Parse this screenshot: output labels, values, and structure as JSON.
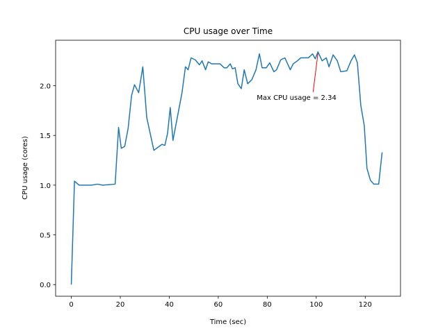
{
  "chart_data": {
    "type": "line",
    "title": "CPU usage over Time",
    "xlabel": "Time (sec)",
    "ylabel": "CPU usage (cores)",
    "x": [
      0,
      1.3,
      3.2,
      4.9,
      6.6,
      8.3,
      10.6,
      12.8,
      17.9,
      19.3,
      20.4,
      21.8,
      23.2,
      24.6,
      25.8,
      27.5,
      29.2,
      30.8,
      33.7,
      37.0,
      38.2,
      39.3,
      40.4,
      41.5,
      43.2,
      45.2,
      46.6,
      47.7,
      48.9,
      50.6,
      52.3,
      53.4,
      54.8,
      55.9,
      57.3,
      60.7,
      62.4,
      63.5,
      64.9,
      65.8,
      66.9,
      68.0,
      69.4,
      70.6,
      72.0,
      73.7,
      75.4,
      76.8,
      77.9,
      79.6,
      81.0,
      82.7,
      83.8,
      85.5,
      87.2,
      89.4,
      90.6,
      92.3,
      93.7,
      96.8,
      98.5,
      99.6,
      100.7,
      102.4,
      104.1,
      105.2,
      106.9,
      108.6,
      110.0,
      112.5,
      114.2,
      115.6,
      116.8,
      118.2,
      119.6,
      120.7,
      122.1,
      123.5,
      125.5,
      126.9
    ],
    "series": [
      {
        "name": "CPU usage",
        "color": "#1f77b4",
        "values": [
          0,
          1.04,
          1.0,
          1.0,
          1.0,
          1.0,
          1.01,
          1.0,
          1.01,
          1.58,
          1.37,
          1.39,
          1.57,
          1.9,
          2.01,
          1.93,
          2.19,
          1.68,
          1.35,
          1.41,
          1.4,
          1.52,
          1.78,
          1.45,
          1.67,
          1.93,
          2.19,
          2.16,
          2.28,
          2.26,
          2.21,
          2.25,
          2.16,
          2.24,
          2.22,
          2.22,
          2.18,
          2.18,
          2.22,
          2.17,
          2.18,
          2.02,
          1.97,
          2.16,
          2.02,
          2.06,
          2.16,
          2.32,
          2.18,
          2.18,
          2.23,
          2.14,
          2.16,
          2.26,
          2.28,
          2.16,
          2.22,
          2.25,
          2.28,
          2.28,
          2.32,
          2.27,
          2.34,
          2.25,
          2.28,
          2.19,
          2.31,
          2.25,
          2.14,
          2.15,
          2.25,
          2.31,
          2.23,
          1.8,
          1.6,
          1.17,
          1.05,
          1.01,
          1.01,
          1.33
        ]
      }
    ],
    "xlim": [
      -6.4,
      134.4
    ],
    "ylim": [
      -0.117,
      2.457
    ],
    "xticks": [
      0,
      20,
      40,
      60,
      80,
      100,
      120
    ],
    "yticks": [
      {
        "value": 0,
        "label": "0.0"
      },
      0.5,
      {
        "value": 1,
        "label": "1.0"
      },
      1.5,
      {
        "value": 2,
        "label": "2.0"
      }
    ],
    "annotation": {
      "text": "Max CPU usage = 2.34",
      "x": 100.7,
      "y": 2.34,
      "color": "#ff0000"
    }
  }
}
